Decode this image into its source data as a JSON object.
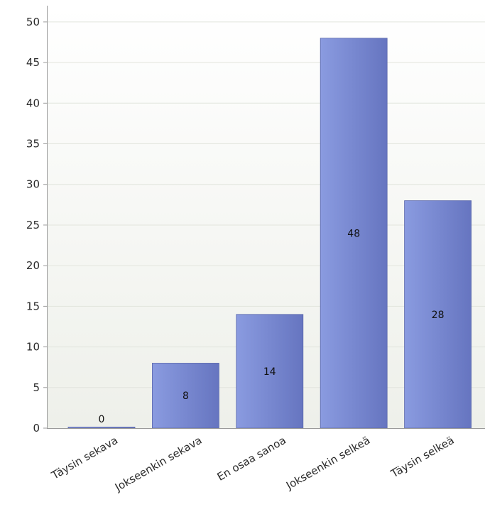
{
  "chart_data": {
    "type": "bar",
    "categories": [
      "Täysin sekava",
      "Jokseenkin sekava",
      "En osaa sanoa",
      "Jokseenkin selkeä",
      "Täysin selkeä"
    ],
    "values": [
      0,
      8,
      14,
      48,
      28
    ],
    "data_labels": [
      "0",
      "8",
      "14",
      "48",
      "28"
    ],
    "ylim": [
      0,
      52
    ],
    "yticks": [
      0,
      5,
      10,
      15,
      20,
      25,
      30,
      35,
      40,
      45,
      50
    ],
    "ytick_labels": [
      "0",
      "5",
      "10",
      "15",
      "20",
      "25",
      "30",
      "35",
      "40",
      "45",
      "50"
    ],
    "grid": "horizontal",
    "xtick_rotation": "-30deg",
    "colors": {
      "bar_light": "#8a9be0",
      "bar_dark": "#6675c0",
      "bar_edge": "#5a67ab",
      "plot_bg_top": "#ffffff",
      "plot_bg_bottom": "#eef0ea",
      "gridline": "#e2e5dd",
      "axis": "#9a9a9a"
    }
  }
}
